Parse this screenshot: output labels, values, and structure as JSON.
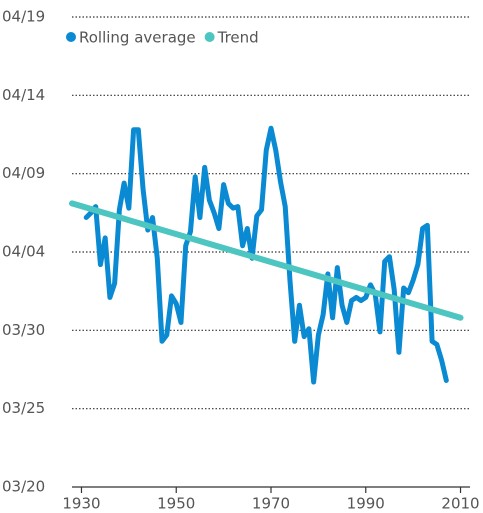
{
  "chart_data": {
    "type": "line",
    "xlim": [
      1928,
      2012
    ],
    "xticks": [
      1930,
      1950,
      1970,
      1990,
      2010
    ],
    "ylim": [
      79,
      109
    ],
    "yticks": [
      {
        "value": 79,
        "label": "03/20"
      },
      {
        "value": 84,
        "label": "03/25"
      },
      {
        "value": 89,
        "label": "03/30"
      },
      {
        "value": 94,
        "label": "04/04"
      },
      {
        "value": 99,
        "label": "04/09"
      },
      {
        "value": 104,
        "label": "04/14"
      },
      {
        "value": 109,
        "label": "04/19"
      }
    ],
    "grid": true,
    "series": [
      {
        "name": "Rolling average",
        "color": "#0a8ad2",
        "x": [
          1931,
          1932,
          1933,
          1934,
          1935,
          1936,
          1937,
          1938,
          1939,
          1940,
          1941,
          1942,
          1943,
          1944,
          1945,
          1946,
          1947,
          1948,
          1949,
          1950,
          1951,
          1952,
          1953,
          1954,
          1955,
          1956,
          1957,
          1958,
          1959,
          1960,
          1961,
          1962,
          1963,
          1964,
          1965,
          1966,
          1967,
          1968,
          1969,
          1970,
          1971,
          1972,
          1973,
          1974,
          1975,
          1976,
          1977,
          1978,
          1979,
          1980,
          1981,
          1982,
          1983,
          1984,
          1985,
          1986,
          1987,
          1988,
          1989,
          1990,
          1991,
          1992,
          1993,
          1994,
          1995,
          1996,
          1997,
          1998,
          1999,
          2000,
          2001,
          2002,
          2003,
          2004,
          2005,
          2006,
          2007
        ],
        "values": [
          96.2,
          96.5,
          96.9,
          93.2,
          94.9,
          91.1,
          92.0,
          96.7,
          98.4,
          96.8,
          101.8,
          101.8,
          98.0,
          95.4,
          96.2,
          93.6,
          88.3,
          88.7,
          91.2,
          90.7,
          89.5,
          94.4,
          95.3,
          98.8,
          96.2,
          99.4,
          97.3,
          96.5,
          95.5,
          98.3,
          97.1,
          96.8,
          96.9,
          94.4,
          95.5,
          93.6,
          96.3,
          96.7,
          100.5,
          101.9,
          100.5,
          98.5,
          96.9,
          92.2,
          88.3,
          90.6,
          88.6,
          89.1,
          85.7,
          88.7,
          90.0,
          92.6,
          89.8,
          93.0,
          90.6,
          89.5,
          90.9,
          91.1,
          90.9,
          91.1,
          91.9,
          91.3,
          88.9,
          93.4,
          93.7,
          91.6,
          87.6,
          91.7,
          91.4,
          92.2,
          93.2,
          95.5,
          95.7,
          88.3,
          88.1,
          87.1,
          85.8
        ]
      },
      {
        "name": "Trend",
        "color": "#4dc5c0",
        "x": [
          1928,
          2010
        ],
        "values": [
          97.1,
          89.8
        ]
      }
    ]
  }
}
